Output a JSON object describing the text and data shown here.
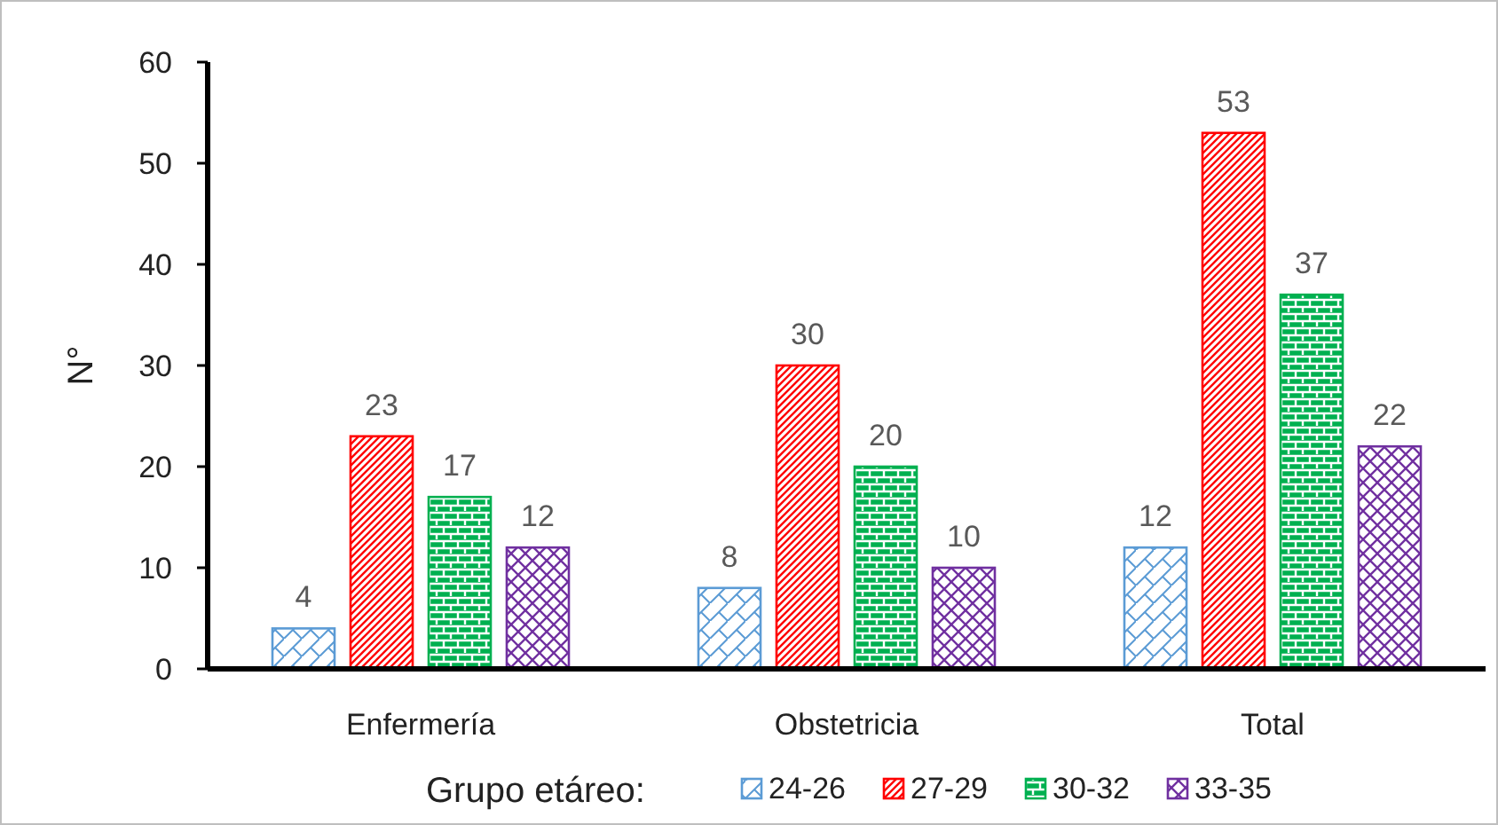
{
  "chart_data": {
    "type": "bar",
    "ylabel": "N°",
    "legend_title": "Grupo etáreo:",
    "categories": [
      "Enfermería",
      "Obstetricia",
      "Total"
    ],
    "series": [
      {
        "name": "24-26",
        "color": "#5b9bd5",
        "values": [
          4,
          8,
          12
        ]
      },
      {
        "name": "27-29",
        "color": "#ff0000",
        "values": [
          23,
          30,
          53
        ]
      },
      {
        "name": "30-32",
        "color": "#00b050",
        "values": [
          17,
          20,
          37
        ]
      },
      {
        "name": "33-35",
        "color": "#7030a0",
        "values": [
          12,
          10,
          22
        ]
      }
    ],
    "ylim": [
      0,
      60
    ],
    "yticks": [
      0,
      10,
      20,
      30,
      40,
      50,
      60
    ],
    "data_labels": true,
    "legend": "bottom"
  }
}
